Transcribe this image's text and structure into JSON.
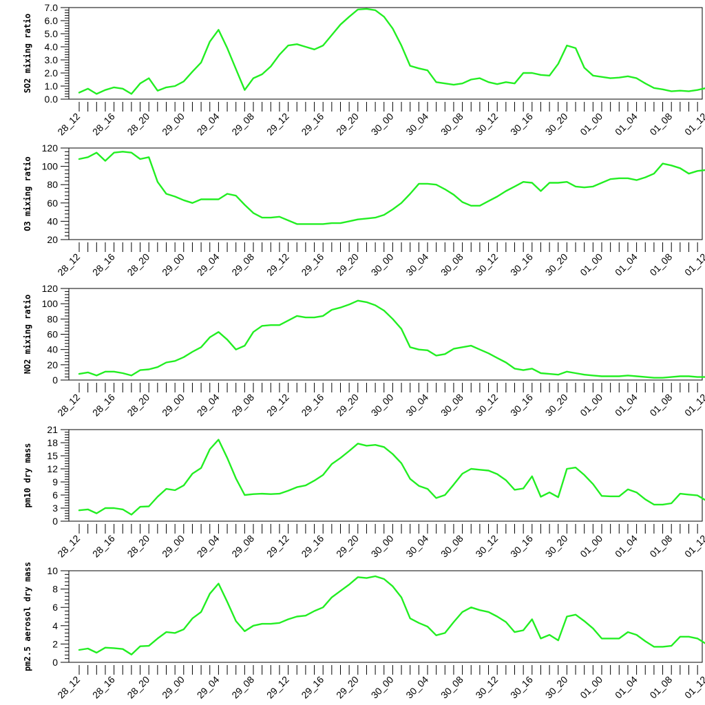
{
  "chart_data": [
    {
      "type": "line",
      "ylabel": "SO2 mixing ratio",
      "ylim": [
        0,
        7
      ],
      "yticks": [
        0,
        1,
        2,
        3,
        4,
        5,
        6,
        7
      ],
      "ytick_labels": [
        "0.0",
        "1.0",
        "2.0",
        "3.0",
        "4.0",
        "5.0",
        "6.0",
        "7.0"
      ],
      "x_tick_labels": [
        "28_12",
        "28_16",
        "28_20",
        "29_00",
        "29_04",
        "29_08",
        "29_12",
        "29_16",
        "29_20",
        "30_00",
        "30_04",
        "30_08",
        "30_12",
        "30_16",
        "30_20",
        "01_00",
        "01_04",
        "01_08",
        "01_12"
      ],
      "series": [
        {
          "color": "#22ee22",
          "values": [
            0.5,
            0.8,
            0.4,
            0.7,
            0.9,
            0.8,
            0.4,
            1.2,
            1.6,
            0.65,
            0.9,
            1.0,
            1.35,
            2.1,
            2.8,
            4.4,
            5.3,
            3.9,
            2.3,
            0.7,
            1.6,
            1.9,
            2.5,
            3.4,
            4.1,
            4.2,
            4.0,
            3.8,
            4.1,
            4.9,
            5.7,
            6.3,
            6.85,
            6.9,
            6.8,
            6.3,
            5.4,
            4.1,
            2.55,
            2.35,
            2.2,
            1.3,
            1.2,
            1.1,
            1.2,
            1.5,
            1.6,
            1.3,
            1.15,
            1.3,
            1.2,
            2.0,
            2.0,
            1.85,
            1.8,
            2.7,
            4.1,
            3.9,
            2.4,
            1.8,
            1.7,
            1.6,
            1.65,
            1.75,
            1.6,
            1.2,
            0.85,
            0.75,
            0.6,
            0.65,
            0.6,
            0.7,
            0.85
          ]
        }
      ]
    },
    {
      "type": "line",
      "ylabel": "O3 mixing ratio",
      "ylim": [
        20,
        120
      ],
      "yticks": [
        20,
        40,
        60,
        80,
        100,
        120
      ],
      "ytick_labels": [
        "20",
        "40",
        "60",
        "80",
        "100",
        "120"
      ],
      "x_tick_labels": [
        "28_12",
        "28_16",
        "28_20",
        "29_00",
        "29_04",
        "29_08",
        "29_12",
        "29_16",
        "29_20",
        "30_00",
        "30_04",
        "30_08",
        "30_12",
        "30_16",
        "30_20",
        "01_00",
        "01_04",
        "01_08",
        "01_12"
      ],
      "series": [
        {
          "color": "#22ee22",
          "values": [
            108,
            110,
            115,
            106,
            115,
            116,
            115,
            108,
            110,
            83,
            70,
            67,
            63,
            60,
            64,
            64,
            64,
            70,
            68,
            58,
            49,
            44,
            44,
            45,
            41,
            37,
            37,
            37,
            37,
            38,
            38,
            40,
            42,
            43,
            44,
            47,
            53,
            60,
            70,
            81,
            81,
            80,
            75,
            69,
            61,
            57,
            57,
            62,
            67,
            73,
            78,
            83,
            82,
            73,
            82,
            82,
            83,
            78,
            77,
            78,
            82,
            86,
            87,
            87,
            85,
            88,
            92,
            103,
            101,
            98,
            92,
            95,
            96,
            98
          ]
        }
      ]
    },
    {
      "type": "line",
      "ylabel": "NO2 mixing ratio",
      "ylim": [
        0,
        120
      ],
      "yticks": [
        0,
        20,
        40,
        60,
        80,
        100,
        120
      ],
      "ytick_labels": [
        "0",
        "20",
        "40",
        "60",
        "80",
        "100",
        "120"
      ],
      "x_tick_labels": [
        "28_12",
        "28_16",
        "28_20",
        "29_00",
        "29_04",
        "29_08",
        "29_12",
        "29_16",
        "29_20",
        "30_00",
        "30_04",
        "30_08",
        "30_12",
        "30_16",
        "30_20",
        "01_00",
        "01_04",
        "01_08",
        "01_12"
      ],
      "series": [
        {
          "color": "#22ee22",
          "values": [
            8,
            10,
            6,
            11,
            11,
            9,
            6,
            13,
            14,
            17,
            23,
            25,
            30,
            37,
            43,
            56,
            63,
            53,
            40,
            45,
            63,
            71,
            72,
            72,
            78,
            84,
            82,
            82,
            84,
            92,
            95,
            99,
            104,
            102,
            98,
            91,
            80,
            67,
            43,
            40,
            39,
            32,
            34,
            41,
            43,
            45,
            40,
            35,
            29,
            23,
            15,
            13,
            15,
            9,
            8,
            7,
            11,
            9,
            7,
            6,
            5,
            5,
            5,
            6,
            5,
            4,
            3,
            3,
            4,
            5,
            5,
            4,
            4
          ]
        }
      ]
    },
    {
      "type": "line",
      "ylabel": "pm10 dry mass",
      "ylim": [
        0,
        21
      ],
      "yticks": [
        0,
        3,
        6,
        9,
        12,
        15,
        18,
        21
      ],
      "ytick_labels": [
        "0",
        "3",
        "6",
        "9",
        "12",
        "15",
        "18",
        "21"
      ],
      "x_tick_labels": [
        "28_12",
        "28_16",
        "28_20",
        "29_00",
        "29_04",
        "29_08",
        "29_12",
        "29_16",
        "29_20",
        "30_00",
        "30_04",
        "30_08",
        "30_12",
        "30_16",
        "30_20",
        "01_00",
        "01_04",
        "01_08",
        "01_12"
      ],
      "series": [
        {
          "color": "#22ee22",
          "values": [
            2.5,
            2.7,
            1.8,
            3.0,
            3.0,
            2.7,
            1.5,
            3.3,
            3.4,
            5.6,
            7.4,
            7.1,
            8.2,
            10.9,
            12.2,
            16.5,
            18.7,
            14.5,
            9.8,
            6.0,
            6.2,
            6.3,
            6.2,
            6.3,
            7.0,
            7.8,
            8.2,
            9.3,
            10.6,
            13.1,
            14.5,
            16.1,
            17.8,
            17.3,
            17.5,
            17.0,
            15.4,
            13.3,
            9.7,
            8.1,
            7.4,
            5.3,
            6.0,
            8.4,
            10.9,
            12.0,
            11.8,
            11.6,
            10.8,
            9.4,
            7.2,
            7.5,
            10.3,
            5.6,
            6.6,
            5.5,
            12.0,
            12.3,
            10.6,
            8.5,
            5.8,
            5.7,
            5.7,
            7.3,
            6.6,
            5.0,
            3.8,
            3.8,
            4.1,
            6.3,
            6.1,
            5.9,
            4.7
          ]
        }
      ]
    },
    {
      "type": "line",
      "ylabel": "pm2.5 aerosol dry mass",
      "ylim": [
        0,
        10
      ],
      "yticks": [
        0,
        2,
        4,
        6,
        8,
        10
      ],
      "ytick_labels": [
        "0",
        "2",
        "4",
        "6",
        "8",
        "10"
      ],
      "x_tick_labels": [
        "28_12",
        "28_16",
        "28_20",
        "29_00",
        "29_04",
        "29_08",
        "29_12",
        "29_16",
        "29_20",
        "30_00",
        "30_04",
        "30_08",
        "30_12",
        "30_16",
        "30_20",
        "01_00",
        "01_04",
        "01_08",
        "01_12"
      ],
      "series": [
        {
          "color": "#22ee22",
          "values": [
            1.35,
            1.5,
            1.05,
            1.6,
            1.55,
            1.45,
            0.85,
            1.75,
            1.8,
            2.6,
            3.3,
            3.2,
            3.6,
            4.8,
            5.5,
            7.5,
            8.6,
            6.6,
            4.5,
            3.4,
            4.0,
            4.2,
            4.2,
            4.3,
            4.7,
            5.0,
            5.1,
            5.6,
            6.0,
            7.1,
            7.8,
            8.5,
            9.3,
            9.2,
            9.4,
            9.1,
            8.3,
            7.1,
            4.8,
            4.3,
            3.9,
            2.95,
            3.2,
            4.4,
            5.5,
            6.0,
            5.7,
            5.5,
            5.0,
            4.4,
            3.3,
            3.5,
            4.7,
            2.6,
            3.0,
            2.4,
            5.0,
            5.2,
            4.5,
            3.7,
            2.6,
            2.6,
            2.6,
            3.3,
            3.0,
            2.3,
            1.7,
            1.7,
            1.8,
            2.8,
            2.8,
            2.6,
            2.0
          ]
        }
      ]
    }
  ]
}
